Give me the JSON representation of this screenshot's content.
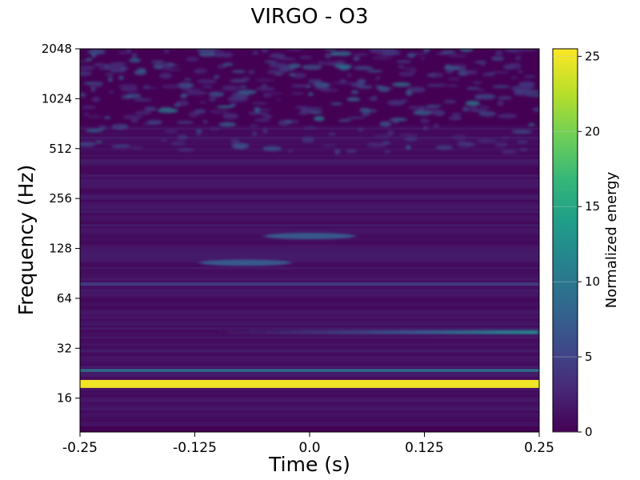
{
  "chart_data": {
    "type": "heatmap",
    "title": "VIRGO - O3",
    "xlabel": "Time (s)",
    "ylabel": "Frequency (Hz)",
    "x_ticks": [
      -0.25,
      -0.125,
      0.0,
      0.125,
      0.25
    ],
    "x_tick_labels": [
      "-0.25",
      "-0.125",
      "0.0",
      "0.125",
      "0.25"
    ],
    "y_scale": "log2",
    "y_ticks": [
      16,
      32,
      64,
      128,
      256,
      512,
      1024,
      2048
    ],
    "y_tick_labels": [
      "16",
      "32",
      "64",
      "128",
      "256",
      "512",
      "1024",
      "2048"
    ],
    "xlim": [
      -0.25,
      0.25
    ],
    "ylim": [
      10,
      2048
    ],
    "colorbar": {
      "label": "Normalized energy",
      "range": [
        0,
        25.5
      ],
      "ticks": [
        0,
        5,
        10,
        15,
        20,
        25
      ],
      "tick_labels": [
        "0",
        "5",
        "10",
        "15",
        "20",
        "25"
      ],
      "colormap": "viridis"
    },
    "features": [
      {
        "description": "persistent narrow line",
        "frequency_hz": 19.5,
        "time_range": [
          -0.25,
          0.25
        ],
        "energy": 25
      },
      {
        "description": "weak line",
        "frequency_hz": 23.5,
        "time_range": [
          -0.25,
          0.25
        ],
        "energy": 10
      },
      {
        "description": "line rising in energy",
        "frequency_hz": 40,
        "time_range": [
          -0.1,
          0.25
        ],
        "energy": 12
      },
      {
        "description": "faint line",
        "frequency_hz": 78,
        "time_range": [
          -0.25,
          0.25
        ],
        "energy": 5
      },
      {
        "description": "blob",
        "frequency_hz": 105,
        "time_range": [
          -0.12,
          -0.02
        ],
        "energy": 7
      },
      {
        "description": "blob",
        "frequency_hz": 152,
        "time_range": [
          -0.05,
          0.05
        ],
        "energy": 7
      },
      {
        "description": "high-frequency noise",
        "frequency_hz": 1200,
        "time_range": [
          -0.25,
          0.25
        ],
        "energy": 9
      }
    ]
  },
  "colors": {
    "background_low": "#440154",
    "line_high": "#fde725",
    "mid": "#21918c",
    "colormap_stops": [
      "#440154",
      "#482777",
      "#3e4a89",
      "#31688e",
      "#26828e",
      "#1f9e89",
      "#35b779",
      "#6ece58",
      "#b5de2b",
      "#fde725"
    ]
  }
}
